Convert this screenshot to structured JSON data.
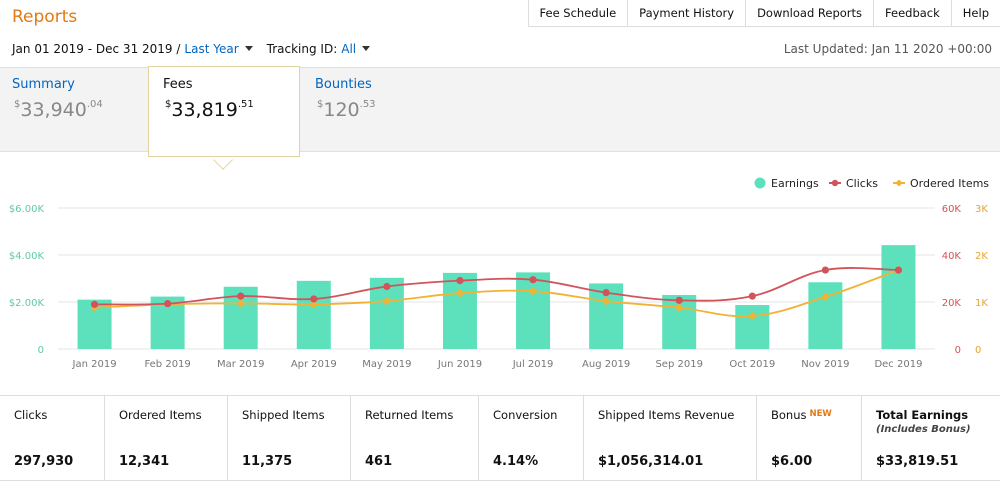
{
  "header": {
    "title": "Reports",
    "nav": [
      "Fee Schedule",
      "Payment History",
      "Download Reports",
      "Feedback",
      "Help"
    ]
  },
  "filters": {
    "date_range": "Jan 01 2019 - Dec 31 2019 /",
    "period": "Last Year",
    "tracking_label": "Tracking ID:",
    "tracking_value": "All",
    "last_updated": "Last Updated: Jan 11 2020 +00:00"
  },
  "tabs": {
    "summary": {
      "label": "Summary",
      "currency": "$",
      "whole": "33,940",
      "cents": ".04"
    },
    "fees": {
      "label": "Fees",
      "currency": "$",
      "whole": "33,819",
      "cents": ".51"
    },
    "bounties": {
      "label": "Bounties",
      "currency": "$",
      "whole": "120",
      "cents": ".53"
    }
  },
  "colors": {
    "earnings": "#5ce1bc",
    "clicks": "#d3535b",
    "ordered": "#f2b233",
    "accent": "#e47911",
    "link": "#0066c0"
  },
  "chart_data": {
    "type": "bar",
    "categories": [
      "Jan 2019",
      "Feb 2019",
      "Mar 2019",
      "Apr 2019",
      "May 2019",
      "Jun 2019",
      "Jul 2019",
      "Aug 2019",
      "Sep 2019",
      "Oct 2019",
      "Nov 2019",
      "Dec 2019"
    ],
    "legend": [
      "Earnings",
      "Clicks",
      "Ordered Items"
    ],
    "series": [
      {
        "name": "Earnings",
        "type": "bar",
        "axis": "left",
        "values": [
          2100,
          2230,
          2650,
          2900,
          3030,
          3240,
          3260,
          2790,
          2300,
          1870,
          2840,
          4420
        ]
      },
      {
        "name": "Clicks",
        "type": "line",
        "axis": "right1",
        "values": [
          19000,
          19300,
          22500,
          21300,
          26600,
          29100,
          29500,
          24000,
          20700,
          22500,
          33600,
          33600
        ]
      },
      {
        "name": "Ordered Items",
        "type": "line",
        "axis": "right2",
        "values": [
          880,
          950,
          970,
          950,
          1020,
          1190,
          1230,
          1020,
          880,
          700,
          1110,
          1680
        ]
      }
    ],
    "y_left": {
      "range": [
        0,
        6000
      ],
      "ticks": [
        "0",
        "$2.00K",
        "$4.00K",
        "$6.00K"
      ]
    },
    "y_right1": {
      "range": [
        0,
        60000
      ],
      "ticks": [
        "0",
        "20K",
        "40K",
        "60K"
      ]
    },
    "y_right2": {
      "range": [
        0,
        3000
      ],
      "ticks": [
        "0",
        "1K",
        "2K",
        "3K"
      ]
    },
    "grid": true,
    "legend_position": "top-right"
  },
  "stats": [
    {
      "label": "Clicks",
      "value": "297,930"
    },
    {
      "label": "Ordered Items",
      "value": "12,341"
    },
    {
      "label": "Shipped Items",
      "value": "11,375"
    },
    {
      "label": "Returned Items",
      "value": "461"
    },
    {
      "label": "Conversion",
      "value": "4.14%"
    },
    {
      "label": "Shipped Items Revenue",
      "value": "$1,056,314.01"
    },
    {
      "label": "Bonus",
      "badge": "NEW",
      "value": "$6.00"
    },
    {
      "label": "Total Earnings",
      "sublabel": "(Includes Bonus)",
      "value": "$33,819.51"
    }
  ]
}
